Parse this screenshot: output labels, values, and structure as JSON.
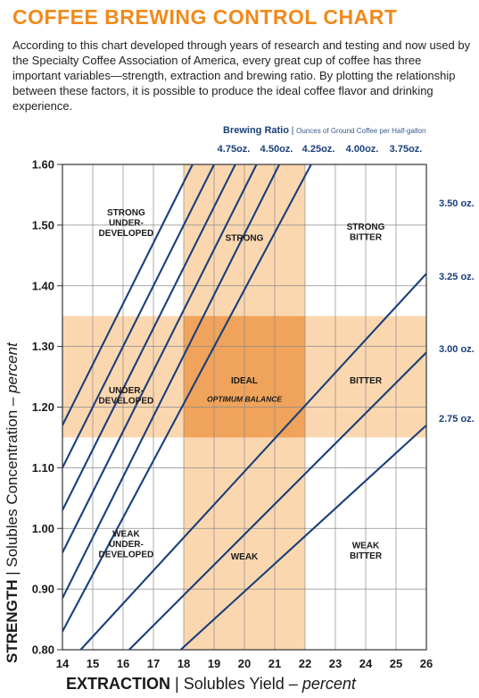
{
  "header": {
    "title": "COFFEE BREWING CONTROL CHART",
    "intro": "According to this chart developed through years of research and testing and now used by the Specialty Coffee Association of America, every great cup of coffee has three important variables—strength, extraction and brewing ratio. By plotting the relationship between these factors, it is possible to produce the ideal coffee flavor and drinking experience."
  },
  "ratio_header": {
    "title": "Brewing Ratio",
    "subtitle": "Ounces of Ground Coffee per Half-gallon"
  },
  "axis_labels": {
    "y_bold": "STRENGTH",
    "y_sep": "|",
    "y_text": "Solubles Concentration – ",
    "y_italic": "percent",
    "x_bold": "EXTRACTION",
    "x_sep": "|",
    "x_text": "Solubles Yield – ",
    "x_italic": "percent"
  },
  "colors": {
    "title": "#f08a1c",
    "band": "#fbd7b0",
    "ideal": "#f0a35a",
    "line": "#1a3f7a",
    "grid": "#8a8a8a"
  },
  "chart_data": {
    "type": "line",
    "xlim": [
      14,
      26
    ],
    "ylim": [
      0.8,
      1.6
    ],
    "x_ticks": [
      "14",
      "15",
      "16",
      "17",
      "18",
      "19",
      "20",
      "21",
      "22",
      "23",
      "24",
      "25",
      "26"
    ],
    "y_ticks": [
      "0.80",
      "0.90",
      "1.00",
      "1.10",
      "1.20",
      "1.30",
      "1.40",
      "1.50",
      "1.60"
    ],
    "grid": true,
    "bands": {
      "extraction_range": [
        18,
        22
      ],
      "strength_range": [
        1.15,
        1.35
      ]
    },
    "series": [
      {
        "name": "4.75oz.",
        "points": [
          [
            14,
            1.17
          ],
          [
            18.29,
            1.6
          ]
        ]
      },
      {
        "name": "4.50oz.",
        "points": [
          [
            14,
            1.1
          ],
          [
            19.0,
            1.6
          ]
        ]
      },
      {
        "name": "4.25oz.",
        "points": [
          [
            14,
            1.03
          ],
          [
            19.7,
            1.6
          ]
        ]
      },
      {
        "name": "4.00oz.",
        "points": [
          [
            14,
            0.96
          ],
          [
            20.4,
            1.6
          ]
        ]
      },
      {
        "name": "3.75oz.",
        "points": [
          [
            14,
            0.885
          ],
          [
            21.15,
            1.6
          ]
        ]
      },
      {
        "name": "3.50 oz.",
        "points": [
          [
            14,
            0.83
          ],
          [
            22.2,
            1.6
          ]
        ]
      },
      {
        "name": "3.25 oz.",
        "points": [
          [
            14.6,
            0.8
          ],
          [
            26,
            1.42
          ]
        ]
      },
      {
        "name": "3.00 oz.",
        "points": [
          [
            16.2,
            0.8
          ],
          [
            26,
            1.29
          ]
        ]
      },
      {
        "name": "2.75 oz.",
        "points": [
          [
            17.9,
            0.8
          ],
          [
            26,
            1.17
          ]
        ]
      }
    ],
    "region_labels": [
      {
        "lines": [
          "STRONG",
          "UNDER-",
          "DEVELOPED"
        ],
        "x": 16.1,
        "y": 1.505
      },
      {
        "lines": [
          "STRONG"
        ],
        "x": 20.0,
        "y": 1.48
      },
      {
        "lines": [
          "STRONG",
          "BITTER"
        ],
        "x": 24.0,
        "y": 1.49
      },
      {
        "lines": [
          "UNDER-",
          "DEVELOPED"
        ],
        "x": 16.1,
        "y": 1.22
      },
      {
        "lines": [
          "IDEAL"
        ],
        "x": 20.0,
        "y": 1.245
      },
      {
        "lines": [
          "OPTIMUM BALANCE"
        ],
        "x": 20.0,
        "y": 1.215,
        "italic": true
      },
      {
        "lines": [
          "BITTER"
        ],
        "x": 24.0,
        "y": 1.245
      },
      {
        "lines": [
          "WEAK",
          "UNDER-",
          "DEVELOPED"
        ],
        "x": 16.1,
        "y": 0.975
      },
      {
        "lines": [
          "WEAK"
        ],
        "x": 20.0,
        "y": 0.955
      },
      {
        "lines": [
          "WEAK",
          "BITTER"
        ],
        "x": 24.0,
        "y": 0.965
      }
    ],
    "series_labels_top": [
      "4.75oz.",
      "4.50oz.",
      "4.25oz.",
      "4.00oz.",
      "3.75oz."
    ],
    "series_labels_right": [
      "3.50 oz.",
      "3.25 oz.",
      "3.00 oz.",
      "2.75 oz."
    ]
  }
}
